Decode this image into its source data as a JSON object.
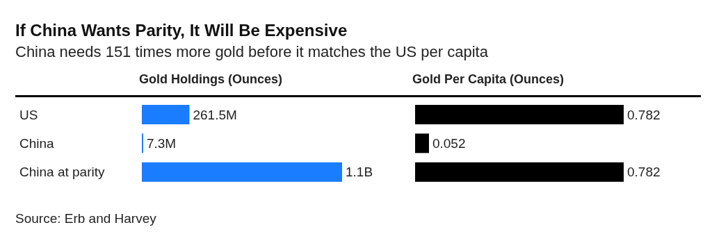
{
  "chart_data": [
    {
      "type": "bar",
      "orientation": "horizontal",
      "title": "If China Wants Parity, It Will Be Expensive",
      "subtitle": "China needs 151 times more gold before it matches the US per capita",
      "xlabel": "Gold Holdings (Ounces)",
      "categories": [
        "US",
        "China",
        "China at parity"
      ],
      "values": [
        261500000,
        7300000,
        1100000000
      ],
      "value_labels": [
        "261.5M",
        "7.3M",
        "1.1B"
      ],
      "color": "#1a7cff",
      "tick_labels": "y",
      "annotations": [
        "Source: Erb and Harvey"
      ]
    },
    {
      "type": "bar",
      "orientation": "horizontal",
      "xlabel": "Gold Per Capita (Ounces)",
      "categories": [
        null,
        null,
        null
      ],
      "values": [
        0.782,
        0.052,
        0.782
      ],
      "data_labels": true,
      "color": "#000000",
      "tick_labels": false
    }
  ]
}
